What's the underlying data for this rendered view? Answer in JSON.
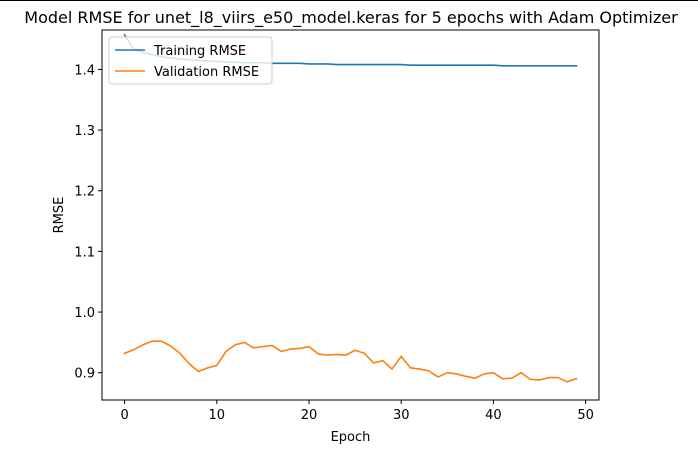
{
  "chart_data": {
    "type": "line",
    "title": "Model RMSE for unet_l8_viirs_e50_model.keras for 5 epochs with Adam Optimizer",
    "xlabel": "Epoch",
    "ylabel": "RMSE",
    "xlim": [
      -2.45,
      51.45
    ],
    "ylim": [
      0.855,
      1.465
    ],
    "xticks": [
      0,
      10,
      20,
      30,
      40,
      50
    ],
    "yticks": [
      0.9,
      1.0,
      1.1,
      1.2,
      1.3,
      1.4
    ],
    "ytick_labels": [
      "0.9",
      "1.0",
      "1.1",
      "1.2",
      "1.3",
      "1.4"
    ],
    "grid": false,
    "legend_position": "upper-left",
    "x": [
      0,
      1,
      2,
      3,
      4,
      5,
      6,
      7,
      8,
      9,
      10,
      11,
      12,
      13,
      14,
      15,
      16,
      17,
      18,
      19,
      20,
      21,
      22,
      23,
      24,
      25,
      26,
      27,
      28,
      29,
      30,
      31,
      32,
      33,
      34,
      35,
      36,
      37,
      38,
      39,
      40,
      41,
      42,
      43,
      44,
      45,
      46,
      47,
      48,
      49
    ],
    "series": [
      {
        "name": "Training RMSE",
        "color": "#1f77b4",
        "values": [
          1.457,
          1.433,
          1.428,
          1.424,
          1.421,
          1.419,
          1.417,
          1.416,
          1.415,
          1.414,
          1.413,
          1.412,
          1.412,
          1.411,
          1.411,
          1.411,
          1.41,
          1.41,
          1.41,
          1.41,
          1.409,
          1.409,
          1.409,
          1.408,
          1.408,
          1.408,
          1.408,
          1.408,
          1.408,
          1.408,
          1.408,
          1.407,
          1.407,
          1.407,
          1.407,
          1.407,
          1.407,
          1.407,
          1.407,
          1.407,
          1.407,
          1.406,
          1.406,
          1.406,
          1.406,
          1.406,
          1.406,
          1.406,
          1.406,
          1.406
        ]
      },
      {
        "name": "Validation RMSE",
        "color": "#ff7f0e",
        "values": [
          0.932,
          0.938,
          0.946,
          0.952,
          0.952,
          0.944,
          0.932,
          0.915,
          0.902,
          0.908,
          0.912,
          0.935,
          0.946,
          0.95,
          0.941,
          0.943,
          0.945,
          0.935,
          0.939,
          0.94,
          0.943,
          0.931,
          0.929,
          0.93,
          0.929,
          0.937,
          0.932,
          0.916,
          0.92,
          0.906,
          0.927,
          0.908,
          0.906,
          0.903,
          0.893,
          0.9,
          0.898,
          0.894,
          0.891,
          0.898,
          0.9,
          0.89,
          0.891,
          0.9,
          0.889,
          0.888,
          0.892,
          0.892,
          0.885,
          0.89
        ]
      }
    ]
  }
}
